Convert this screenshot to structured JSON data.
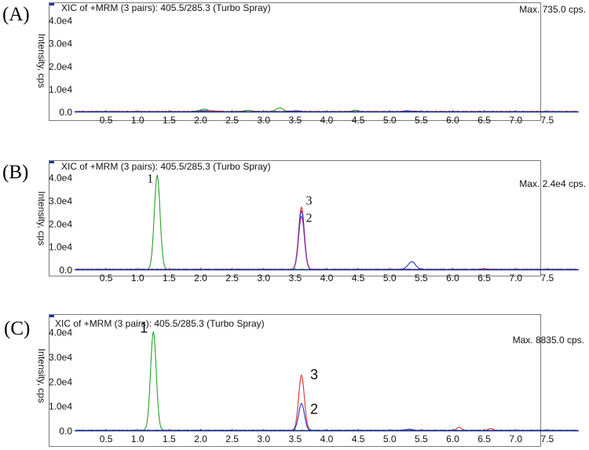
{
  "chart_data": [
    {
      "type": "line",
      "panel_label": "(A)",
      "header": "XIC of +MRM (3 pairs): 405.5/285.3 (Turbo Spray)",
      "max_label": "Max. 735.0 cps.",
      "ylabel": "Intensity, cps",
      "y_ticks": [
        "0.0",
        "1.0e4",
        "2.0e4",
        "3.0e4",
        "4.0e4"
      ],
      "x_ticks": [
        "0.5",
        "1.0",
        "1.5",
        "2.0",
        "2.5",
        "3.0",
        "3.5",
        "4.0",
        "4.5",
        "5.0",
        "5.5",
        "6.0",
        "6.5",
        "7.0",
        "7.5"
      ],
      "xlim": [
        0,
        8
      ],
      "ylim": [
        0,
        45000
      ],
      "series": [
        {
          "color": "#2aa02a",
          "peaks": [
            [
              2.05,
              1000,
              0.07
            ],
            [
              2.75,
              500,
              0.07
            ],
            [
              3.25,
              1500,
              0.06
            ],
            [
              4.45,
              500,
              0.05
            ]
          ]
        },
        {
          "color": "#2233bb",
          "peaks": [
            [
              2.1,
              400,
              0.1
            ],
            [
              3.5,
              300,
              0.08
            ],
            [
              5.3,
              300,
              0.08
            ]
          ]
        },
        {
          "color": "#dd3333",
          "peaks": [
            [
              2.2,
              300,
              0.08
            ]
          ]
        }
      ],
      "peak_labels": []
    },
    {
      "type": "line",
      "panel_label": "(B)",
      "header": "XIC of +MRM (3 pairs): 405.5/285.3 (Turbo Spray)",
      "max_label": "Max. 2.4e4 cps.",
      "ylabel": "Intensity, cps",
      "y_ticks": [
        "0.0",
        "1.0e4",
        "2.0e4",
        "3.0e4",
        "4.0e4"
      ],
      "x_ticks": [
        "0.5",
        "1.0",
        "1.5",
        "2.0",
        "2.5",
        "3.0",
        "3.5",
        "4.0",
        "4.5",
        "5.0",
        "5.5",
        "6.0",
        "6.5",
        "7.0",
        "7.5"
      ],
      "xlim": [
        0,
        8
      ],
      "ylim": [
        0,
        45000
      ],
      "series": [
        {
          "color": "#2aa02a",
          "peaks": [
            [
              1.31,
              41000,
              0.045
            ]
          ]
        },
        {
          "color": "#dd3333",
          "peaks": [
            [
              3.6,
              27000,
              0.045
            ],
            [
              6.5,
              300,
              0.05
            ]
          ]
        },
        {
          "color": "#2233bb",
          "peaks": [
            [
              3.6,
              25500,
              0.045
            ],
            [
              5.35,
              3300,
              0.06
            ]
          ]
        },
        {
          "color": "#9933aa",
          "peaks": [
            [
              3.6,
              23000,
              0.045
            ]
          ]
        }
      ],
      "peak_labels": [
        {
          "text": "1",
          "x": 1.2,
          "y": 38000
        },
        {
          "text": "3",
          "x": 3.72,
          "y": 28500
        },
        {
          "text": "2",
          "x": 3.72,
          "y": 21000
        }
      ]
    },
    {
      "type": "line",
      "panel_label": "(C)",
      "header": "XIC of +MRM (3 pairs): 405.5/285.3  (Turbo Spray)",
      "max_label": "Max. 8835.0 cps.",
      "ylabel": "Intensity, cps",
      "y_ticks": [
        "0.0",
        "1.0e4",
        "2.0e4",
        "3.0e4",
        "4.0e4"
      ],
      "x_ticks": [
        "0.5",
        "1.0",
        "1.5",
        "2.0",
        "2.5",
        "3.0",
        "3.5",
        "4.0",
        "4.5",
        "5.0",
        "5.5",
        "6.0",
        "6.5",
        "7.0",
        "7.5"
      ],
      "xlim": [
        0,
        8
      ],
      "ylim": [
        0,
        45000
      ],
      "series": [
        {
          "color": "#2aa02a",
          "peaks": [
            [
              1.25,
              40000,
              0.045
            ]
          ]
        },
        {
          "color": "#dd3333",
          "peaks": [
            [
              3.6,
              22500,
              0.045
            ],
            [
              6.1,
              1200,
              0.04
            ],
            [
              6.6,
              700,
              0.04
            ]
          ]
        },
        {
          "color": "#2233bb",
          "peaks": [
            [
              3.6,
              11000,
              0.045
            ],
            [
              5.3,
              500,
              0.05
            ]
          ]
        }
      ],
      "peak_labels": [
        {
          "text": "1",
          "x": 1.1,
          "y": 40000
        },
        {
          "text": "3",
          "x": 3.8,
          "y": 21000
        },
        {
          "text": "2",
          "x": 3.8,
          "y": 7000
        }
      ]
    }
  ]
}
